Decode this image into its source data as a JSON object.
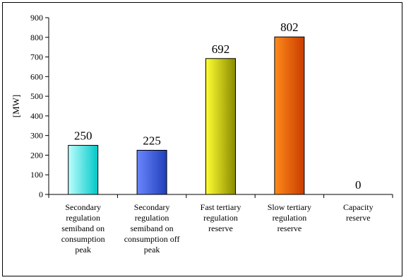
{
  "chart_data": {
    "type": "bar",
    "title": "",
    "xlabel": "",
    "ylabel": "[MW]",
    "ylim": [
      0,
      900
    ],
    "yticks": [
      0,
      100,
      200,
      300,
      400,
      500,
      600,
      700,
      800,
      900
    ],
    "grid": false,
    "legend": "none",
    "categories": [
      [
        "Secondary",
        "regulation",
        "semiband on",
        "consumption",
        "peak"
      ],
      [
        "Secondary",
        "regulation",
        "semiband on",
        "consumption off",
        "peak"
      ],
      [
        "Fast tertiary",
        "regulation",
        "reserve"
      ],
      [
        "Slow tertiary",
        "regulation",
        "reserve"
      ],
      [
        "Capacity",
        "reserve"
      ]
    ],
    "values": [
      250,
      225,
      692,
      802,
      0
    ],
    "data_labels": [
      "250",
      "225",
      "692",
      "802",
      "0"
    ],
    "colors": [
      [
        "#00c8c8",
        "#bdfdfd"
      ],
      [
        "#1f3fb8",
        "#6a86ff"
      ],
      [
        "#8a8a00",
        "#ffff33"
      ],
      [
        "#c83c00",
        "#ff8a1a"
      ],
      [
        "#808080",
        "#c0c0c0"
      ]
    ]
  }
}
